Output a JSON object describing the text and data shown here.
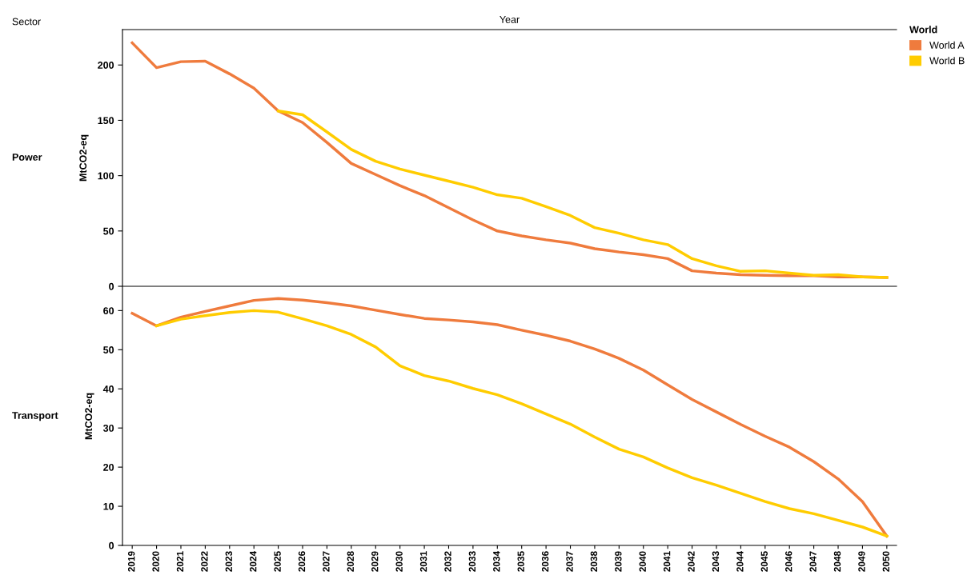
{
  "chart_data": [
    {
      "type": "line",
      "title": "Power",
      "xlabel": "Year",
      "ylabel": "MtCO2-eq",
      "legend_title": "World",
      "legend": "top right",
      "annotations": [
        "Sector"
      ],
      "tick_labels": "y",
      "grid": false,
      "categories": [
        "2019",
        "2020",
        "2021",
        "2022",
        "2023",
        "2024",
        "2025",
        "2026",
        "2027",
        "2028",
        "2029",
        "2030",
        "2031",
        "2032",
        "2033",
        "2034",
        "2035",
        "2036",
        "2037",
        "2038",
        "2039",
        "2040",
        "2041",
        "2042",
        "2043",
        "2044",
        "2045",
        "2046",
        "2047",
        "2048",
        "2049",
        "2050"
      ],
      "ylim": [
        0,
        232
      ],
      "yticks": [
        0,
        50,
        100,
        150,
        200
      ],
      "series": [
        {
          "name": "World A",
          "color": "#ef7b3d",
          "values": [
            220,
            197.6,
            203,
            203.5,
            192,
            179,
            158.5,
            148,
            130,
            111,
            101,
            91,
            82,
            71,
            60,
            50,
            45.5,
            42,
            39,
            34,
            31,
            28.5,
            25,
            14,
            12,
            10.5,
            10,
            9.5,
            9.5,
            8.5,
            8.5,
            8
          ]
        },
        {
          "name": "World B",
          "color": "#ffcc00",
          "values": [
            null,
            null,
            null,
            null,
            null,
            null,
            158.5,
            155,
            139.5,
            123.7,
            113,
            106,
            100.5,
            95,
            89.5,
            82.7,
            79.6,
            72,
            64,
            53,
            48,
            42,
            37.7,
            25,
            18.5,
            13.5,
            14,
            12,
            10,
            10.5,
            8.5,
            8
          ]
        }
      ]
    },
    {
      "type": "line",
      "title": "Transport",
      "ylabel": "MtCO2-eq",
      "grid": false,
      "categories": [
        "2019",
        "2020",
        "2021",
        "2022",
        "2023",
        "2024",
        "2025",
        "2026",
        "2027",
        "2028",
        "2029",
        "2030",
        "2031",
        "2032",
        "2033",
        "2034",
        "2035",
        "2036",
        "2037",
        "2038",
        "2039",
        "2040",
        "2041",
        "2042",
        "2043",
        "2044",
        "2045",
        "2046",
        "2047",
        "2048",
        "2049",
        "2050"
      ],
      "ylim": [
        0,
        66
      ],
      "yticks": [
        0,
        10,
        20,
        30,
        40,
        50,
        60
      ],
      "series": [
        {
          "color": "#ef7b3d",
          "values": [
            59.3,
            56.1,
            58.3,
            59.8,
            61.2,
            62.6,
            63.1,
            62.7,
            62,
            61.2,
            60.1,
            59,
            58,
            57.6,
            57.1,
            56.4,
            55,
            53.7,
            52.2,
            50.2,
            47.8,
            44.8,
            41,
            37.3,
            34.1,
            30.9,
            27.9,
            25.1,
            21.4,
            17,
            11.2,
            2.4
          ]
        },
        {
          "color": "#ffcc00",
          "values": [
            null,
            56.1,
            57.8,
            58.7,
            59.5,
            60,
            59.6,
            57.9,
            56.1,
            53.9,
            50.7,
            45.9,
            43.4,
            42,
            40.1,
            38.5,
            36.2,
            33.6,
            31,
            27.7,
            24.6,
            22.6,
            19.8,
            17.3,
            15.4,
            13.3,
            11.2,
            9.4,
            8.1,
            6.4,
            4.7,
            2.4
          ]
        }
      ]
    }
  ]
}
